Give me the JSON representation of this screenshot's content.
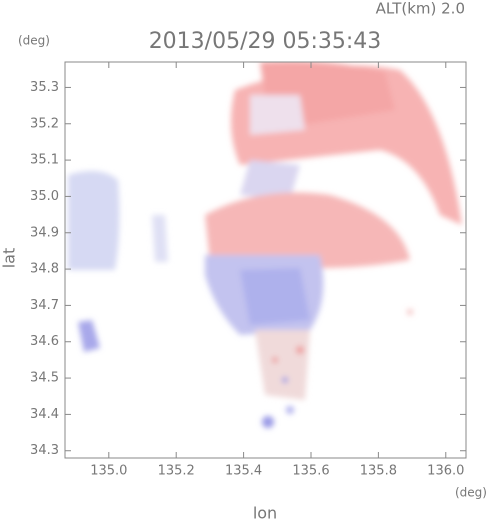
{
  "chart_data": {
    "type": "radar-map",
    "title": "2013/05/29 05:35:43",
    "subtitle": "ALT(km) 2.0",
    "y_unit": "(deg)",
    "x_unit": "(deg)",
    "xlabel": "lon",
    "ylabel": "lat",
    "xlim": [
      134.87,
      136.06
    ],
    "ylim": [
      34.28,
      35.37
    ],
    "xticks": [
      {
        "value": 135,
        "label": "135.0"
      },
      135.2,
      135.4,
      135.6,
      135.8,
      {
        "value": 136,
        "label": "136.0"
      }
    ],
    "yticks": [
      35.3,
      35.2,
      35.1,
      {
        "value": 35,
        "label": "35.0"
      },
      34.9,
      34.8,
      34.7,
      34.6,
      34.5,
      34.4,
      34.3
    ]
  }
}
